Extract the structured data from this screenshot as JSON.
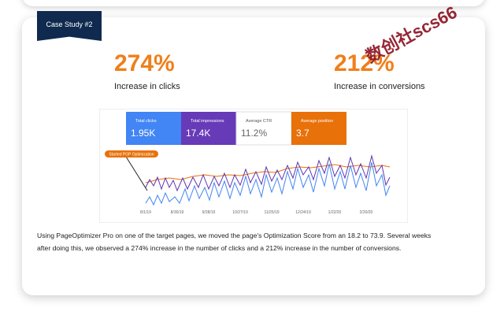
{
  "badge": "Case Study #2",
  "stats": [
    {
      "value": "274%",
      "label": "Increase in clicks"
    },
    {
      "value": "212%",
      "label": "Increase in conversions"
    }
  ],
  "chart": {
    "metrics": [
      {
        "label": "Total clicks",
        "value": "1.95K"
      },
      {
        "label": "Total impressions",
        "value": "17.4K"
      },
      {
        "label": "Average CTR",
        "value": "11.2%"
      },
      {
        "label": "Average position",
        "value": "3.7"
      }
    ],
    "annotation": "Started POP Optimization",
    "dates": [
      "8/1/19",
      "8/30/19",
      "9/28/19",
      "10/27/19",
      "11/25/19",
      "12/24/19",
      "1/22/20",
      "2/20/20"
    ]
  },
  "paragraph": [
    "Using PageOptimizer Pro on one of the target pages, we moved the page's Optimization Score from an 18.2 to 73.9. Several weeks",
    "after doing this, we observed a 274% increase in the number of clicks and a 212% increase in the number of conversions."
  ],
  "watermark": "数创社scs66"
}
